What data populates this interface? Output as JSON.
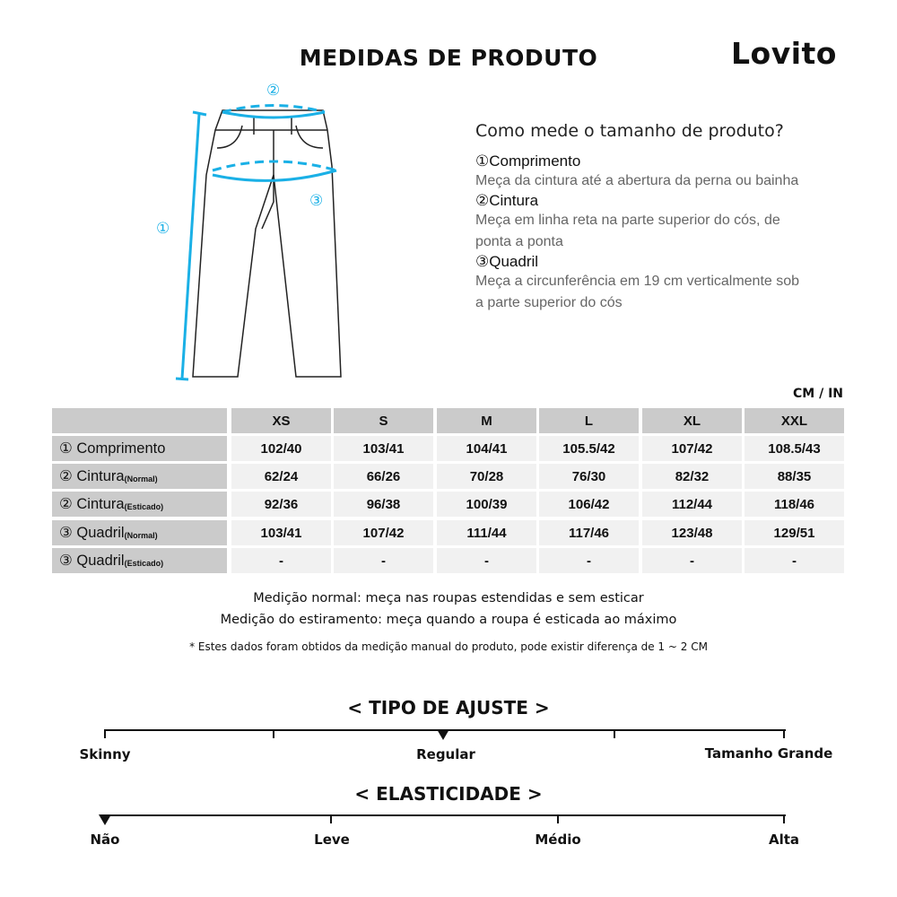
{
  "title": "MEDIDAS DE PRODUTO",
  "logo": "Lovito",
  "guide": {
    "heading": "Como mede o tamanho de produto?",
    "items": [
      {
        "marker": "①",
        "name": "Comprimento",
        "desc": "Meça da cintura até a abertura da perna ou bainha"
      },
      {
        "marker": "②",
        "name": "Cintura",
        "desc": "Meça em linha reta na parte superior do cós, de ponta a ponta"
      },
      {
        "marker": "③",
        "name": "Quadril",
        "desc": "Meça a circunferência em 19 cm verticalmente sob a parte superior do cós"
      }
    ],
    "diagram_markers": [
      "①",
      "②",
      "③"
    ],
    "accent_color": "#1ab0e6"
  },
  "table": {
    "unit": "CM / IN",
    "sizes": [
      "XS",
      "S",
      "M",
      "L",
      "XL",
      "XXL"
    ],
    "rows": [
      {
        "label": "① Comprimento",
        "sub": "",
        "values": [
          "102/40",
          "103/41",
          "104/41",
          "105.5/42",
          "107/42",
          "108.5/43"
        ]
      },
      {
        "label": "② Cintura",
        "sub": "(Normal)",
        "values": [
          "62/24",
          "66/26",
          "70/28",
          "76/30",
          "82/32",
          "88/35"
        ]
      },
      {
        "label": "② Cintura",
        "sub": "(Esticado)",
        "values": [
          "92/36",
          "96/38",
          "100/39",
          "106/42",
          "112/44",
          "118/46"
        ]
      },
      {
        "label": "③ Quadril",
        "sub": "(Normal)",
        "values": [
          "103/41",
          "107/42",
          "111/44",
          "117/46",
          "123/48",
          "129/51"
        ]
      },
      {
        "label": "③ Quadril",
        "sub": "(Esticado)",
        "values": [
          "-",
          "-",
          "-",
          "-",
          "-",
          "-"
        ]
      }
    ]
  },
  "notes": [
    "Medição normal: meça nas roupas estendidas e sem esticar",
    "Medição do estiramento: meça quando a roupa é esticada ao máximo",
    "* Estes dados foram obtidos da medição manual do produto, pode existir diferença de 1 ~ 2 CM"
  ],
  "fit": {
    "title": "< TIPO DE AJUSTE >",
    "labels": [
      "Skinny",
      "Regular",
      "Tamanho Grande"
    ],
    "selected": "Regular"
  },
  "elasticity": {
    "title": "< ELASTICIDADE >",
    "labels": [
      "Não",
      "Leve",
      "Médio",
      "Alta"
    ],
    "selected": "Não"
  }
}
